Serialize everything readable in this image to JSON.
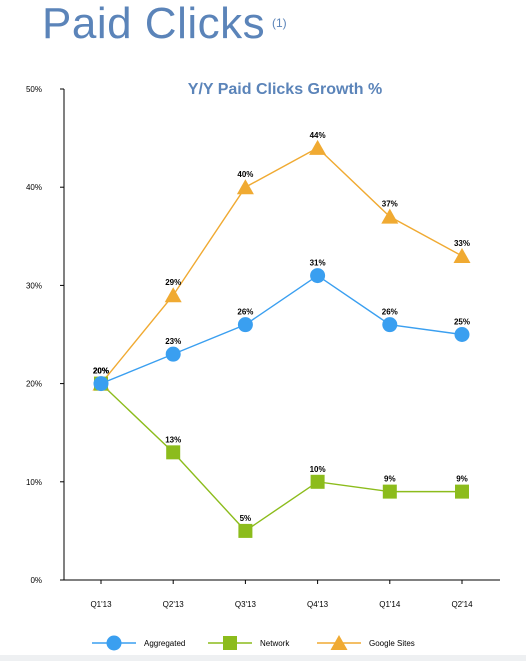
{
  "page": {
    "title": "Paid Clicks",
    "title_note": "(1)"
  },
  "chart_data": {
    "type": "line",
    "title": "Y/Y Paid Clicks Growth %",
    "xlabel": "",
    "ylabel": "",
    "categories": [
      "Q1'13",
      "Q2'13",
      "Q3'13",
      "Q4'13",
      "Q1'14",
      "Q2'14"
    ],
    "ylim": [
      0,
      50
    ],
    "yticks": [
      0,
      10,
      20,
      30,
      40,
      50
    ],
    "ytick_labels": [
      "0%",
      "10%",
      "20%",
      "30%",
      "40%",
      "50%"
    ],
    "grid": false,
    "legend_position": "bottom",
    "series": [
      {
        "name": "Aggregated",
        "values": [
          20,
          23,
          26,
          31,
          26,
          25
        ],
        "labels": [
          "20%",
          "23%",
          "26%",
          "31%",
          "26%",
          "25%"
        ],
        "color": "#3a9ff0",
        "marker": "circle"
      },
      {
        "name": "Network",
        "values": [
          20,
          13,
          5,
          10,
          9,
          9
        ],
        "labels": [
          "20%",
          "13%",
          "5%",
          "10%",
          "9%",
          "9%"
        ],
        "color": "#8cbc1c",
        "marker": "square"
      },
      {
        "name": "Google Sites",
        "values": [
          20,
          29,
          40,
          44,
          37,
          33
        ],
        "labels": [
          "20%",
          "29%",
          "40%",
          "44%",
          "37%",
          "33%"
        ],
        "color": "#f0aa32",
        "marker": "triangle"
      }
    ]
  }
}
